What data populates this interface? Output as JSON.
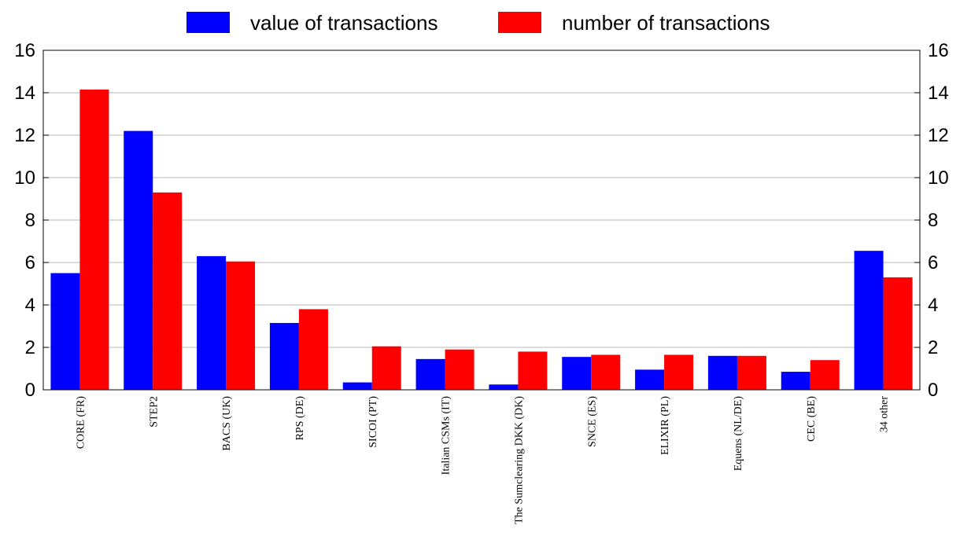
{
  "chart_data": {
    "type": "bar",
    "categories": [
      "CORE (FR)",
      "STEP2",
      "BACS (UK)",
      "RPS (DE)",
      "SICOI (PT)",
      "Italian CSMs (IT)",
      "The Sumclearing DKK (DK)",
      "SNCE (ES)",
      "ELIXIR (PL)",
      "Equens (NL/DE)",
      "CEC (BE)",
      "34 other"
    ],
    "series": [
      {
        "name": "value of transactions",
        "color": "#0000ff",
        "values": [
          5.5,
          12.2,
          6.3,
          3.15,
          0.35,
          1.45,
          0.25,
          1.55,
          0.95,
          1.6,
          0.85,
          6.55
        ]
      },
      {
        "name": "number of transactions",
        "color": "#ff0000",
        "values": [
          14.15,
          9.3,
          6.05,
          3.8,
          2.05,
          1.9,
          1.8,
          1.65,
          1.65,
          1.6,
          1.4,
          5.3
        ]
      }
    ],
    "ylim": [
      0,
      16
    ],
    "yticks": [
      "0",
      "2",
      "4",
      "6",
      "8",
      "10",
      "12",
      "14",
      "16"
    ],
    "grid": true,
    "legend_position": "top"
  }
}
